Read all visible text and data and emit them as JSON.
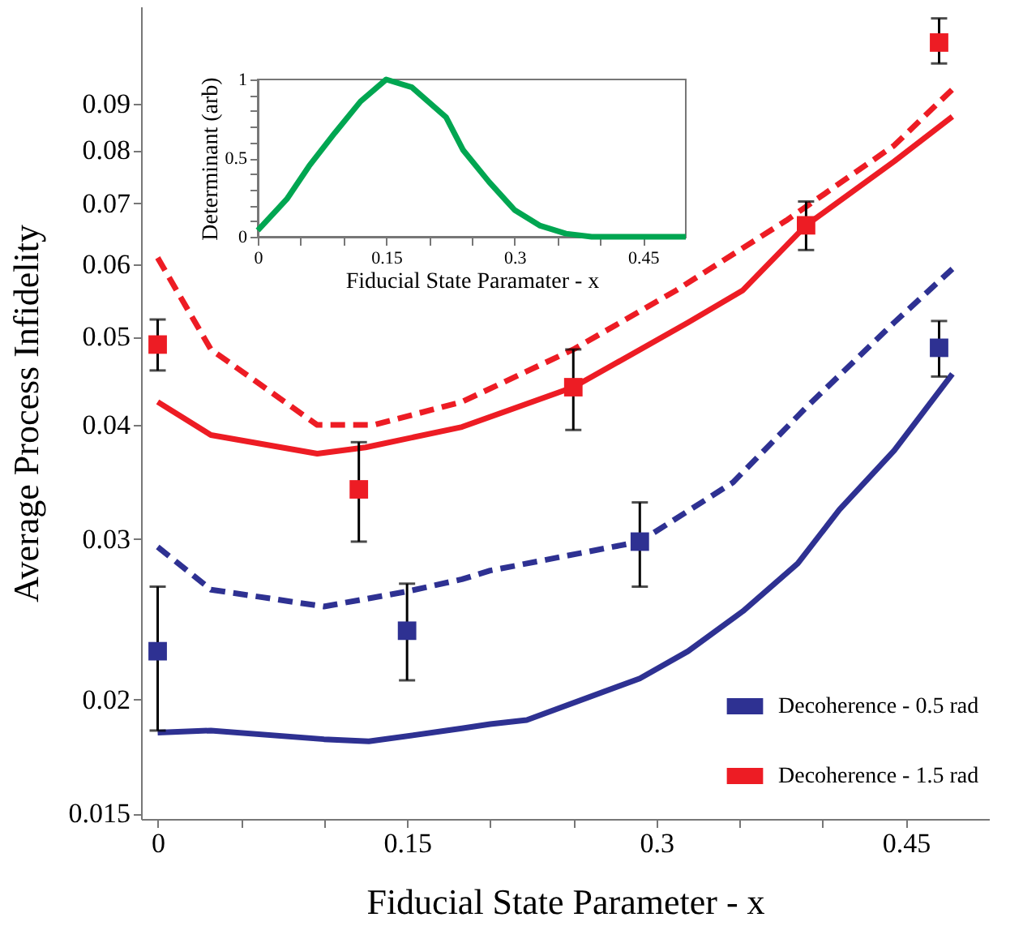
{
  "chart_data": [
    {
      "type": "line",
      "xlabel": "Fiducial State Parameter - x",
      "ylabel": "Average Process Infidelity",
      "xlim": [
        -0.01,
        0.5
      ],
      "xticks": [
        0,
        {
          "value": 0.05,
          "label": null
        },
        {
          "value": 0.1,
          "label": null
        },
        0.15,
        {
          "value": 0.2,
          "label": null
        },
        {
          "value": 0.25,
          "label": null
        },
        0.3,
        {
          "value": 0.35,
          "label": null
        },
        {
          "value": 0.4,
          "label": null
        },
        0.45
      ],
      "ylim": [
        0.0148,
        0.115
      ],
      "yticks": [
        0.015,
        0.02,
        0.03,
        0.04,
        0.05,
        0.06,
        0.07,
        0.08,
        0.09
      ],
      "log": true,
      "grid": false,
      "legend": "bottom right",
      "series": [
        {
          "name": "Decoherence - 0.5 rad",
          "color": "#2e3192",
          "line_style": "solid",
          "x": [
            0,
            0.032,
            0.1,
            0.127,
            0.183,
            0.2,
            0.222,
            0.29,
            0.319,
            0.352,
            0.385,
            0.41,
            0.443,
            0.478
          ],
          "values": [
            0.0184,
            0.0185,
            0.0181,
            0.018,
            0.0186,
            0.0188,
            0.019,
            0.0211,
            0.0226,
            0.025,
            0.0282,
            0.0323,
            0.0375,
            0.0455
          ]
        },
        {
          "color": "#2e3192",
          "line_style": "dashed",
          "x": [
            0,
            0.032,
            0.1,
            0.151,
            0.183,
            0.2,
            0.29,
            0.346,
            0.39,
            0.443,
            0.478
          ],
          "values": [
            0.0294,
            0.0264,
            0.0253,
            0.0263,
            0.0271,
            0.0277,
            0.0298,
            0.0346,
            0.0418,
            0.0518,
            0.0593
          ]
        },
        {
          "name": "Decoherence - 1.5 rad",
          "color": "#ed1c24",
          "line_style": "solid",
          "x": [
            0,
            0.032,
            0.096,
            0.125,
            0.183,
            0.25,
            0.319,
            0.352,
            0.39,
            0.443,
            0.478
          ],
          "values": [
            0.0424,
            0.039,
            0.0372,
            0.0378,
            0.0398,
            0.044,
            0.0518,
            0.0562,
            0.0662,
            0.0778,
            0.0871
          ]
        },
        {
          "color": "#ed1c24",
          "line_style": "dashed",
          "x": [
            0,
            0.032,
            0.096,
            0.13,
            0.183,
            0.25,
            0.312,
            0.378,
            0.443,
            0.478
          ],
          "values": [
            0.061,
            0.0484,
            0.04,
            0.04,
            0.0424,
            0.0484,
            0.0562,
            0.067,
            0.081,
            0.0933
          ]
        },
        {
          "color": "#2e3192",
          "type": "scatter",
          "marker": "square",
          "x": [
            0,
            0.15,
            0.29,
            0.47
          ],
          "values": [
            0.0226,
            0.0238,
            0.0298,
            0.0486
          ],
          "errors": [
            [
              0.0185,
              0.0266
            ],
            [
              0.021,
              0.0268
            ],
            [
              0.0266,
              0.0329
            ],
            [
              0.0452,
              0.052
            ]
          ]
        },
        {
          "color": "#ed1c24",
          "type": "scatter",
          "marker": "square",
          "x": [
            0,
            0.121,
            0.25,
            0.39,
            0.47
          ],
          "values": [
            0.049,
            0.034,
            0.044,
            0.0662,
            0.105
          ],
          "errors": [
            [
              0.0459,
              0.0522
            ],
            [
              0.0298,
              0.0383
            ],
            [
              0.0395,
              0.0484
            ],
            [
              0.0622,
              0.0703
            ],
            [
              0.0996,
              0.1116
            ]
          ]
        }
      ]
    },
    {
      "type": "line",
      "xlabel": "Fiducial State Paramater - x",
      "ylabel": "Determinant (arb)",
      "xlim": [
        0,
        0.5
      ],
      "xticks": [
        0,
        {
          "value": 0.05,
          "label": null
        },
        {
          "value": 0.1,
          "label": null
        },
        0.15,
        {
          "value": 0.2,
          "label": null
        },
        {
          "value": 0.25,
          "label": null
        },
        0.3,
        {
          "value": 0.35,
          "label": null
        },
        {
          "value": 0.4,
          "label": null
        },
        0.45
      ],
      "ylim": [
        0,
        1
      ],
      "yticks": [
        0,
        {
          "value": 0.1,
          "label": null
        },
        {
          "value": 0.2,
          "label": null
        },
        {
          "value": 0.3,
          "label": null
        },
        {
          "value": 0.4,
          "label": null
        },
        0.5,
        {
          "value": 0.6,
          "label": null
        },
        {
          "value": 0.7,
          "label": null
        },
        {
          "value": 0.8,
          "label": null
        },
        {
          "value": 0.9,
          "label": null
        },
        1
      ],
      "grid": false,
      "series": [
        {
          "color": "#00a651",
          "line_style": "solid",
          "x": [
            0,
            0.034,
            0.06,
            0.09,
            0.12,
            0.15,
            0.18,
            0.22,
            0.24,
            0.27,
            0.3,
            0.33,
            0.36,
            0.39,
            0.5
          ],
          "values": [
            0.04,
            0.24,
            0.45,
            0.66,
            0.86,
            1.0,
            0.95,
            0.76,
            0.55,
            0.35,
            0.17,
            0.07,
            0.02,
            0,
            0
          ]
        }
      ]
    }
  ]
}
